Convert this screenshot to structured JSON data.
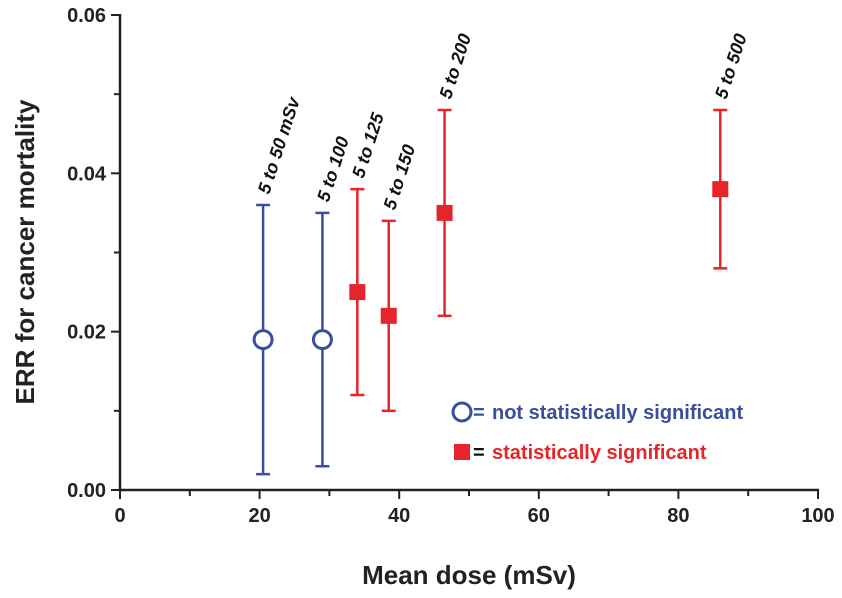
{
  "chart_data": {
    "type": "scatter",
    "xlabel": "Mean dose (mSv)",
    "ylabel": "ERR for cancer mortality",
    "xlim": [
      0,
      100
    ],
    "xticks": [
      0,
      20,
      40,
      60,
      80,
      100
    ],
    "xminor_ticks": [
      10,
      30,
      50,
      70,
      90
    ],
    "ylim": [
      0,
      0.06
    ],
    "yticks": [
      {
        "value": 0,
        "label": "0.00"
      },
      0.02,
      0.04,
      0.06
    ],
    "yminor_ticks": [
      0.01,
      0.03,
      0.05
    ],
    "legend_joiner": "=",
    "series": [
      {
        "name": "not statistically significant",
        "color": "#3a4ea0",
        "marker": "open-circle",
        "x": [
          20.5,
          29
        ],
        "values": [
          0.019,
          0.019
        ],
        "lower": [
          0.002,
          0.003
        ],
        "upper": [
          0.036,
          0.035
        ],
        "point_labels": [
          "5 to 50 mSv",
          "5 to 100"
        ]
      },
      {
        "name": "statistically significant",
        "color": "#e8242b",
        "marker": "filled-square",
        "x": [
          34,
          38.5,
          46.5,
          86
        ],
        "values": [
          0.025,
          0.022,
          0.035,
          0.038
        ],
        "lower": [
          0.012,
          0.01,
          0.022,
          0.028
        ],
        "upper": [
          0.038,
          0.034,
          0.048,
          0.048
        ],
        "point_labels": [
          "5 to 125",
          "5 to 150",
          "5 to 200",
          "5 to 500"
        ]
      }
    ]
  }
}
